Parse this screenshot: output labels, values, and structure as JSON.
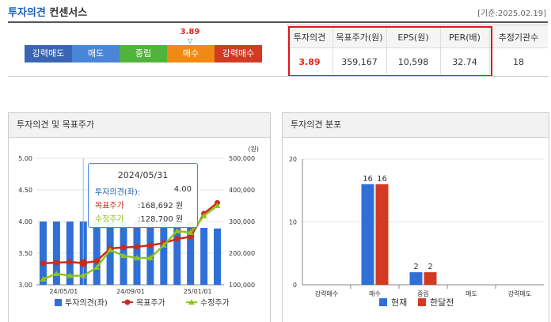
{
  "header": {
    "title_main": "투자의견",
    "title_sub": "컨센서스",
    "date": "[기준:2025.02.19]"
  },
  "scale": {
    "labels": [
      "강력매도",
      "매도",
      "중립",
      "매수",
      "강력매수"
    ],
    "colors": [
      "#3a65b4",
      "#4a86d8",
      "#52b33c",
      "#f08a14",
      "#d23a24"
    ],
    "current_value": "3.89",
    "marker": "▽"
  },
  "summary_table": {
    "headers": [
      "투자의견",
      "목표주가(원)",
      "EPS(원)",
      "PER(배)",
      "추정기관수"
    ],
    "values": [
      "3.89",
      "359,167",
      "10,598",
      "32.74",
      "18"
    ]
  },
  "left_panel": {
    "title": "투자의견 및 목표주가",
    "unit_label": "(원)",
    "tooltip": {
      "date": "2024/05/31",
      "rows": [
        {
          "label": "투자의견(좌):",
          "value": "4.00",
          "color": "#1d5fb5"
        },
        {
          "label": "목표주가",
          "value": ":168,692 원",
          "color": "#cc2b1b"
        },
        {
          "label": "수정주가",
          "value": ":128,700 원",
          "color": "#8ec31e"
        }
      ]
    },
    "legend": [
      "투자의견(좌)",
      "목표주가",
      "수정주가"
    ]
  },
  "right_panel": {
    "title": "투자의견 분포",
    "legend": [
      "현재",
      "한달전"
    ]
  },
  "chart_data": [
    {
      "type": "bar",
      "title": "투자의견 및 목표주가",
      "x_ticks": [
        "24/05/01",
        "24/09/01",
        "25/01/01"
      ],
      "left_axis": {
        "ticks": [
          "5.00",
          "4.50",
          "4.00",
          "3.50",
          "3.00"
        ],
        "ylim": [
          3.0,
          5.0
        ]
      },
      "right_axis": {
        "ticks": [
          "500,000",
          "400,000",
          "300,000",
          "200,000",
          "100,000"
        ],
        "ylim": [
          100000,
          500000
        ]
      },
      "series": [
        {
          "name": "투자의견(좌)",
          "type": "bar",
          "color": "#2f6fd6",
          "values": [
            4.0,
            4.0,
            4.0,
            4.0,
            4.0,
            4.0,
            4.0,
            4.0,
            4.0,
            4.0,
            4.0,
            4.0,
            3.9,
            3.89
          ]
        },
        {
          "name": "목표주가",
          "type": "line",
          "color": "#cc2b1b",
          "values": [
            168000,
            170000,
            172000,
            168692,
            175000,
            215000,
            218000,
            220000,
            225000,
            232000,
            245000,
            252000,
            325000,
            359167
          ]
        },
        {
          "name": "수정주가",
          "type": "line",
          "color": "#8ec31e",
          "values": [
            118000,
            135000,
            128700,
            128700,
            155000,
            210000,
            192000,
            185000,
            185000,
            225000,
            270000,
            265000,
            318000,
            350000
          ]
        }
      ]
    },
    {
      "type": "bar",
      "title": "투자의견 분포",
      "categories": [
        "강력매수",
        "매수",
        "중립",
        "매도",
        "강력매도"
      ],
      "ylim": [
        0,
        20
      ],
      "y_ticks": [
        "20",
        "10",
        "0"
      ],
      "series": [
        {
          "name": "현재",
          "color": "#2f6fd6",
          "values": [
            0,
            16,
            2,
            0,
            0
          ]
        },
        {
          "name": "한달전",
          "color": "#d23a24",
          "values": [
            0,
            16,
            2,
            0,
            0
          ]
        }
      ]
    }
  ]
}
